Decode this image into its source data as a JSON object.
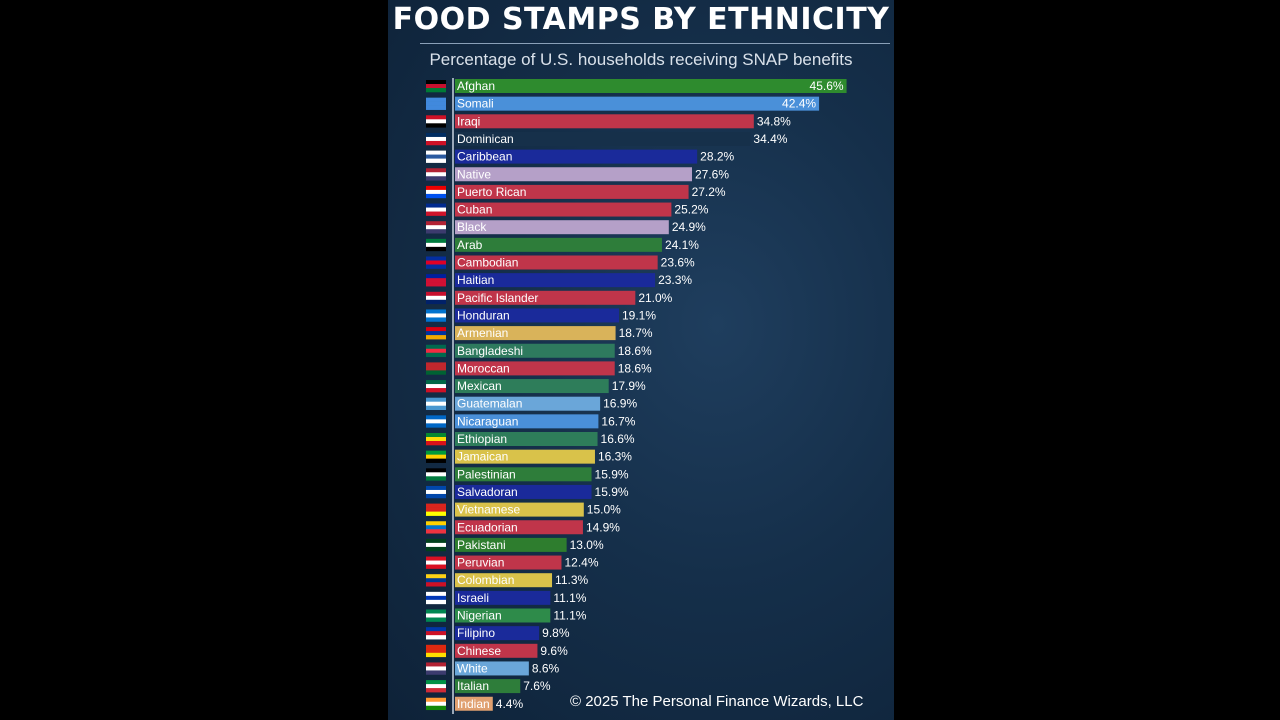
{
  "title": "FOOD STAMPS BY ETHNICITY",
  "subtitle": "Percentage of U.S. households receiving SNAP benefits",
  "credit": "© 2025 The Personal Finance Wizards, LLC",
  "chart_data": {
    "type": "bar",
    "orientation": "horizontal",
    "title": "FOOD STAMPS BY ETHNICITY",
    "subtitle": "Percentage of U.S. households receiving SNAP benefits",
    "xlim": [
      0,
      46
    ],
    "grid": false,
    "value_suffix": "%",
    "categories": [
      "Afghan",
      "Somali",
      "Iraqi",
      "Dominican",
      "Caribbean",
      "Native",
      "Puerto Rican",
      "Cuban",
      "Black",
      "Arab",
      "Cambodian",
      "Haitian",
      "Pacific Islander",
      "Honduran",
      "Armenian",
      "Bangladeshi",
      "Moroccan",
      "Mexican",
      "Guatemalan",
      "Nicaraguan",
      "Ethiopian",
      "Jamaican",
      "Palestinian",
      "Salvadoran",
      "Vietnamese",
      "Ecuadorian",
      "Pakistani",
      "Peruvian",
      "Colombian",
      "Israeli",
      "Nigerian",
      "Filipino",
      "Chinese",
      "White",
      "Italian",
      "Indian"
    ],
    "values": [
      45.6,
      42.4,
      34.8,
      34.4,
      28.2,
      27.6,
      27.2,
      25.2,
      24.9,
      24.1,
      23.6,
      23.3,
      21.0,
      19.1,
      18.7,
      18.6,
      18.6,
      17.9,
      16.9,
      16.7,
      16.6,
      16.3,
      15.9,
      15.9,
      15.0,
      14.9,
      13.0,
      12.4,
      11.3,
      11.1,
      11.1,
      9.8,
      9.6,
      8.6,
      7.6,
      4.4
    ],
    "labels": [
      "45.6%",
      "42.4%",
      "34.8%",
      "34.4%",
      "28.2%",
      "27.6%",
      "27.2%",
      "25.2%",
      "24.9%",
      "24.1%",
      "23.6%",
      "23.3%",
      "21.0%",
      "19.1%",
      "18.7%",
      "18.6%",
      "18.6%",
      "17.9%",
      "16.9%",
      "16.7%",
      "16.6%",
      "16.3%",
      "15.9%",
      "15.9%",
      "15.0%",
      "14.9%",
      "13.0%",
      "12.4%",
      "11.3%",
      "11.1%",
      "11.1%",
      "9.8%",
      "9.6%",
      "8.6%",
      "7.6%",
      "4.4%"
    ],
    "colors": [
      "#2e8b2e",
      "#4a90d9",
      "#c0354a",
      "#16304a",
      "#1a2a9a",
      "#b5a0c8",
      "#c0354a",
      "#c0354a",
      "#b5a0c8",
      "#2e7d3a",
      "#c0354a",
      "#1a2a9a",
      "#c0354a",
      "#1a2a9a",
      "#d9b35a",
      "#2e7a5e",
      "#c0354a",
      "#2e7d5a",
      "#6aa6d9",
      "#4a90d9",
      "#2e7d5a",
      "#d9c24a",
      "#2e7d3a",
      "#1a2a9a",
      "#d9c24a",
      "#c0354a",
      "#2e7d2e",
      "#c0354a",
      "#d9c24a",
      "#1a2a9a",
      "#2e8b4a",
      "#1a2a9a",
      "#c0354a",
      "#6aa6d9",
      "#2e7d3a",
      "#e0a070"
    ],
    "flag_colors": [
      [
        "#000000",
        "#c8102e",
        "#007a36"
      ],
      [
        "#4189dd",
        "#4189dd",
        "#4189dd"
      ],
      [
        "#ce1126",
        "#ffffff",
        "#000000"
      ],
      [
        "#002d62",
        "#ffffff",
        "#ce1126"
      ],
      [
        "#ffffff",
        "#2a5aa0",
        "#ffffff"
      ],
      [
        "#b22234",
        "#ffffff",
        "#3c3b6e"
      ],
      [
        "#ed0000",
        "#ffffff",
        "#0050f0"
      ],
      [
        "#002a8f",
        "#ffffff",
        "#cf142b"
      ],
      [
        "#b22234",
        "#ffffff",
        "#3c3b6e"
      ],
      [
        "#007a3d",
        "#ffffff",
        "#000000"
      ],
      [
        "#032ea1",
        "#e00025",
        "#032ea1"
      ],
      [
        "#00209f",
        "#d21034",
        "#d21034"
      ],
      [
        "#c8102e",
        "#ffffff",
        "#012169"
      ],
      [
        "#0073cf",
        "#ffffff",
        "#0073cf"
      ],
      [
        "#d90012",
        "#0033a0",
        "#f2a800"
      ],
      [
        "#006a4e",
        "#f42a41",
        "#006a4e"
      ],
      [
        "#c1272d",
        "#c1272d",
        "#006233"
      ],
      [
        "#006847",
        "#ffffff",
        "#ce1126"
      ],
      [
        "#4997d0",
        "#ffffff",
        "#4997d0"
      ],
      [
        "#0067c6",
        "#ffffff",
        "#0067c6"
      ],
      [
        "#078930",
        "#fcdd09",
        "#da121a"
      ],
      [
        "#009b3a",
        "#fed100",
        "#000000"
      ],
      [
        "#000000",
        "#ffffff",
        "#007a3d"
      ],
      [
        "#0047ab",
        "#ffffff",
        "#0047ab"
      ],
      [
        "#da251d",
        "#da251d",
        "#ffff00"
      ],
      [
        "#ffd100",
        "#0072ce",
        "#ef3340"
      ],
      [
        "#01411c",
        "#ffffff",
        "#01411c"
      ],
      [
        "#d91023",
        "#ffffff",
        "#d91023"
      ],
      [
        "#fcd116",
        "#003893",
        "#ce1126"
      ],
      [
        "#ffffff",
        "#0038b8",
        "#ffffff"
      ],
      [
        "#008751",
        "#ffffff",
        "#008751"
      ],
      [
        "#0038a8",
        "#ce1126",
        "#ffffff"
      ],
      [
        "#de2910",
        "#de2910",
        "#ffde00"
      ],
      [
        "#b22234",
        "#ffffff",
        "#3c3b6e"
      ],
      [
        "#009246",
        "#ffffff",
        "#ce2b37"
      ],
      [
        "#ff9933",
        "#ffffff",
        "#138808"
      ]
    ]
  }
}
